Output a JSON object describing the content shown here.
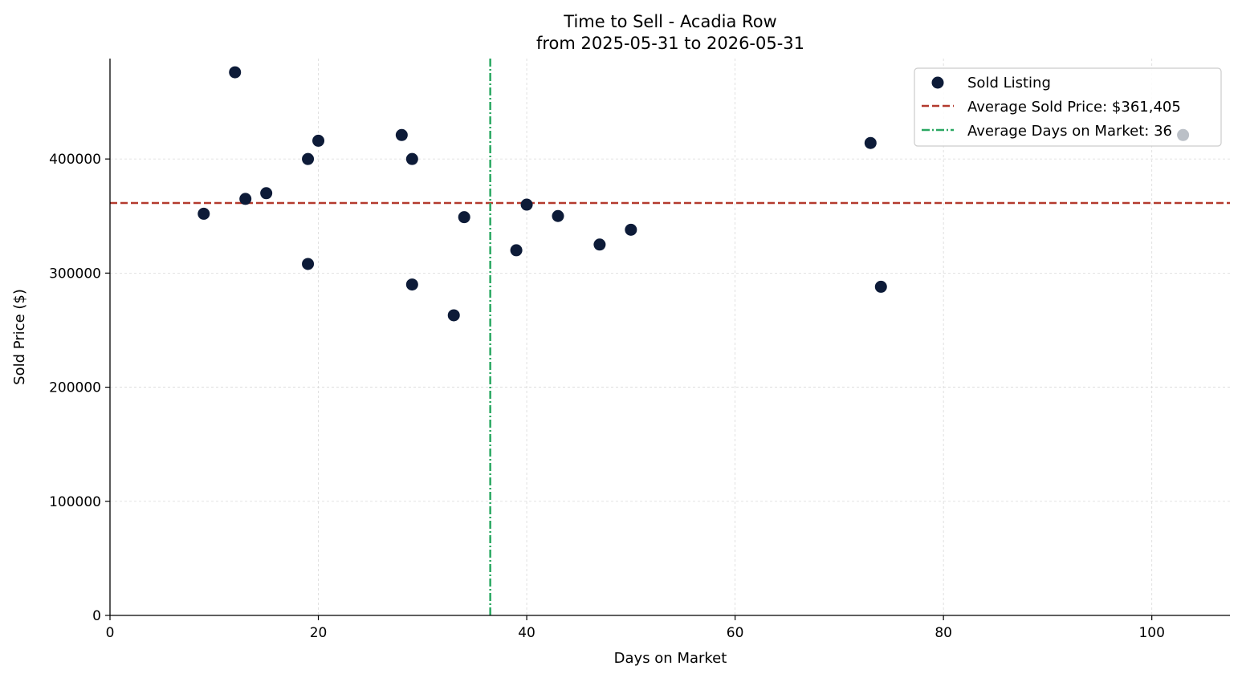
{
  "chart_data": {
    "type": "scatter",
    "title": "Time to Sell - Acadia Row",
    "subtitle": "from 2025-05-31 to 2026-05-31",
    "xlabel": "Days on Market",
    "ylabel": "Sold Price ($)",
    "xlim": [
      0,
      107.5
    ],
    "ylim": [
      0,
      488000
    ],
    "xticks": [
      0,
      20,
      40,
      60,
      80,
      100
    ],
    "yticks": [
      0,
      100000,
      200000,
      300000,
      400000
    ],
    "xtick_labels": [
      "0",
      "20",
      "40",
      "60",
      "80",
      "100"
    ],
    "ytick_labels": [
      "0",
      "100000",
      "200000",
      "300000",
      "400000"
    ],
    "grid": true,
    "legend_position": "top-right",
    "series": [
      {
        "name": "Sold Listing",
        "color": "#0d1b38",
        "points": [
          {
            "x": 9,
            "y": 352000
          },
          {
            "x": 12,
            "y": 476000
          },
          {
            "x": 13,
            "y": 365000
          },
          {
            "x": 15,
            "y": 370000
          },
          {
            "x": 19,
            "y": 400000
          },
          {
            "x": 19,
            "y": 308000
          },
          {
            "x": 20,
            "y": 416000
          },
          {
            "x": 28,
            "y": 421000
          },
          {
            "x": 29,
            "y": 400000
          },
          {
            "x": 29,
            "y": 290000
          },
          {
            "x": 33,
            "y": 263000
          },
          {
            "x": 34,
            "y": 349000
          },
          {
            "x": 39,
            "y": 320000
          },
          {
            "x": 40,
            "y": 360000
          },
          {
            "x": 43,
            "y": 350000
          },
          {
            "x": 47,
            "y": 325000
          },
          {
            "x": 50,
            "y": 338000
          },
          {
            "x": 73,
            "y": 414000
          },
          {
            "x": 74,
            "y": 288000
          },
          {
            "x": 103,
            "y": 421000
          }
        ]
      }
    ],
    "reference_lines": [
      {
        "orientation": "horizontal",
        "value": 361405,
        "label": "Average Sold Price: $361,405",
        "color": "#b33a2e",
        "style": "dashed"
      },
      {
        "orientation": "vertical",
        "value": 36.5,
        "label": "Average Days on Market: 36",
        "color": "#2aa862",
        "style": "dashdot"
      }
    ]
  }
}
